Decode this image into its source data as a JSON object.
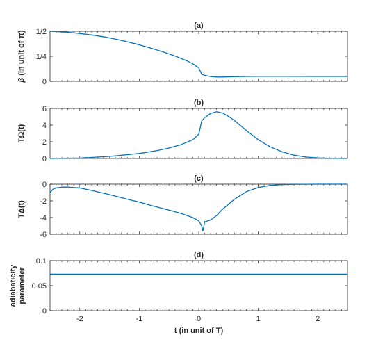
{
  "colors": {
    "series": "#0072BD",
    "axis": "#262626",
    "background": "#ffffff"
  },
  "xlabel": "t (in unit of T)",
  "xlim": [
    -2.5,
    2.5
  ],
  "xticks": [
    -2,
    -1,
    0,
    1,
    2
  ],
  "xtick_labels": [
    "-2",
    "-1",
    "0",
    "1",
    "2"
  ],
  "chart_data": [
    {
      "type": "line",
      "title": "(a)",
      "ylabel": "β (in unit of π)",
      "ylim": [
        0,
        0.5
      ],
      "yticks": [
        0,
        0.25,
        0.5
      ],
      "ytick_labels": [
        "0",
        "1/4",
        "1/2"
      ],
      "grid": false,
      "series": [
        {
          "x": [
            -2.5,
            -2.2,
            -2.0,
            -1.8,
            -1.6,
            -1.4,
            -1.2,
            -1.0,
            -0.8,
            -0.6,
            -0.4,
            -0.2,
            -0.1,
            0.0,
            0.05,
            0.1,
            0.2,
            0.3,
            0.4,
            0.6,
            0.8,
            1.0,
            1.5,
            2.0,
            2.5
          ],
          "y": [
            0.5,
            0.49,
            0.478,
            0.463,
            0.445,
            0.422,
            0.395,
            0.365,
            0.331,
            0.294,
            0.253,
            0.205,
            0.175,
            0.135,
            0.07,
            0.06,
            0.048,
            0.043,
            0.043,
            0.046,
            0.049,
            0.05,
            0.05,
            0.049,
            0.049
          ]
        }
      ]
    },
    {
      "type": "line",
      "title": "(b)",
      "ylabel": "TΩ(t)",
      "ylim": [
        0,
        6
      ],
      "yticks": [
        0,
        2,
        4,
        6
      ],
      "ytick_labels": [
        "0",
        "2",
        "4",
        "6"
      ],
      "grid": false,
      "series": [
        {
          "x": [
            -2.5,
            -2.0,
            -1.5,
            -1.0,
            -0.7,
            -0.5,
            -0.3,
            -0.1,
            0.0,
            0.05,
            0.1,
            0.2,
            0.3,
            0.4,
            0.5,
            0.6,
            0.7,
            0.8,
            0.9,
            1.0,
            1.2,
            1.4,
            1.6,
            1.8,
            2.0,
            2.2,
            2.5
          ],
          "y": [
            0.0,
            0.05,
            0.25,
            0.6,
            0.95,
            1.25,
            1.65,
            2.25,
            2.9,
            4.5,
            4.9,
            5.4,
            5.6,
            5.45,
            5.05,
            4.55,
            3.95,
            3.35,
            2.8,
            2.25,
            1.4,
            0.8,
            0.4,
            0.18,
            0.07,
            0.02,
            0.0
          ]
        }
      ]
    },
    {
      "type": "line",
      "title": "(c)",
      "ylabel": "TΔ(t)",
      "ylim": [
        -6,
        0
      ],
      "yticks": [
        -6,
        -4,
        -2,
        0
      ],
      "ytick_labels": [
        "-6",
        "-4",
        "-2",
        "0"
      ],
      "grid": false,
      "series": [
        {
          "x": [
            -2.5,
            -2.45,
            -2.4,
            -2.3,
            -2.2,
            -2.0,
            -1.8,
            -1.5,
            -1.2,
            -1.0,
            -0.8,
            -0.5,
            -0.3,
            -0.1,
            0.0,
            0.05,
            0.07,
            0.1,
            0.2,
            0.3,
            0.4,
            0.6,
            0.8,
            1.0,
            1.2,
            1.4,
            1.6,
            2.0,
            2.5
          ],
          "y": [
            -1.0,
            -0.6,
            -0.45,
            -0.35,
            -0.35,
            -0.45,
            -0.75,
            -1.25,
            -1.8,
            -2.15,
            -2.55,
            -3.1,
            -3.5,
            -4.0,
            -4.4,
            -5.0,
            -5.6,
            -4.5,
            -4.3,
            -3.75,
            -3.0,
            -1.8,
            -0.9,
            -0.4,
            -0.15,
            -0.05,
            -0.02,
            0.0,
            0.0
          ]
        }
      ]
    },
    {
      "type": "line",
      "title": "(d)",
      "ylabel": "adiabaticity\nparameter",
      "ylim": [
        0,
        0.1
      ],
      "yticks": [
        0,
        0.05,
        0.1
      ],
      "ytick_labels": [
        "0",
        "0.05",
        "0.1"
      ],
      "grid": false,
      "series": [
        {
          "x": [
            -2.5,
            2.5
          ],
          "y": [
            0.073,
            0.073
          ]
        }
      ]
    }
  ]
}
